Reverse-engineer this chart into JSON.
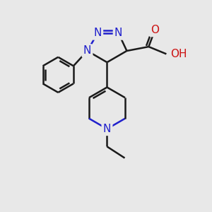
{
  "bg_color": "#e8e8e8",
  "bond_color": "#1a1a1a",
  "bond_width": 1.8,
  "n_color": "#2020cc",
  "o_color": "#cc1111",
  "font_size": 11,
  "figsize": [
    3.0,
    3.0
  ],
  "dpi": 100,
  "xlim": [
    0,
    10
  ],
  "ylim": [
    0,
    10
  ]
}
